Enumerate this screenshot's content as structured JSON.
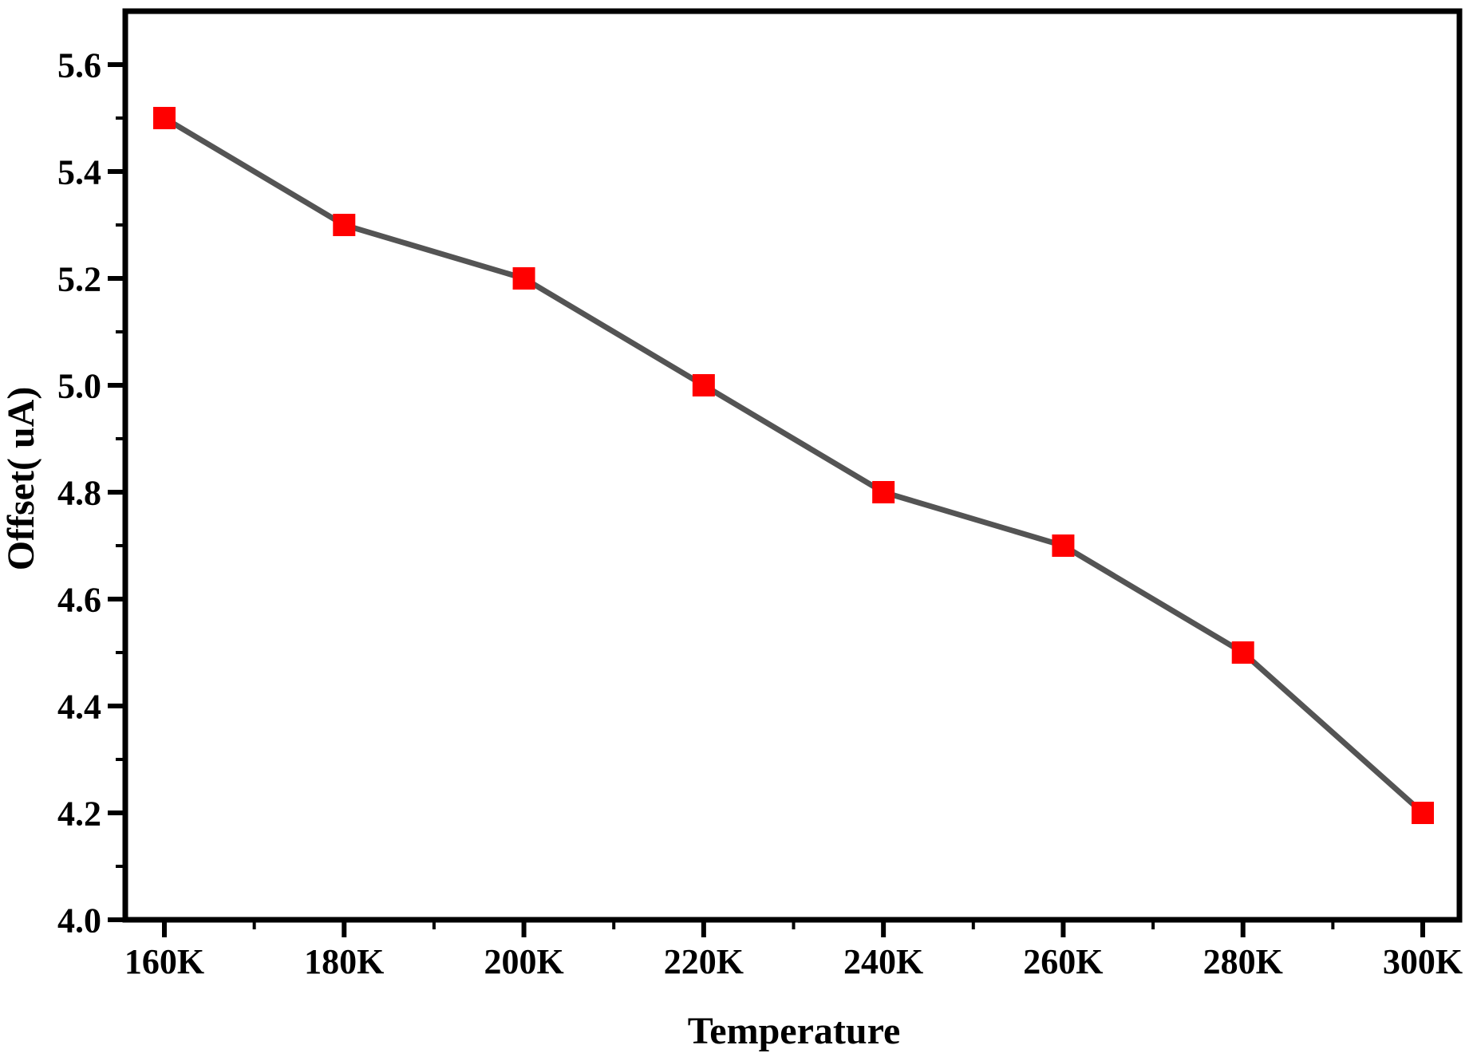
{
  "chart_data": {
    "type": "line",
    "title": "",
    "xlabel": "Temperature",
    "ylabel": "Offset( uA)",
    "categories": [
      "160K",
      "180K",
      "200K",
      "220K",
      "240K",
      "260K",
      "280K",
      "300K"
    ],
    "series": [
      {
        "name": "Offset",
        "values": [
          5.5,
          5.3,
          5.2,
          5.0,
          4.8,
          4.7,
          4.5,
          4.2
        ]
      }
    ],
    "ylim": [
      4.0,
      5.7
    ],
    "y_major_ticks": [
      4.0,
      4.2,
      4.4,
      4.6,
      4.8,
      5.0,
      5.2,
      5.4,
      5.6
    ],
    "y_tick_labels": [
      "4.0",
      "4.2",
      "4.4",
      "4.6",
      "4.8",
      "5.0",
      "5.2",
      "5.4",
      "5.6"
    ],
    "y_minor_step": 0.1,
    "x_minor_ticks": "midpoints",
    "grid": false,
    "legend_position": "none",
    "colors": {
      "line": "#545454",
      "marker": "#ff0000",
      "axis": "#000000",
      "background": "#ffffff"
    },
    "marker_shape": "square"
  }
}
